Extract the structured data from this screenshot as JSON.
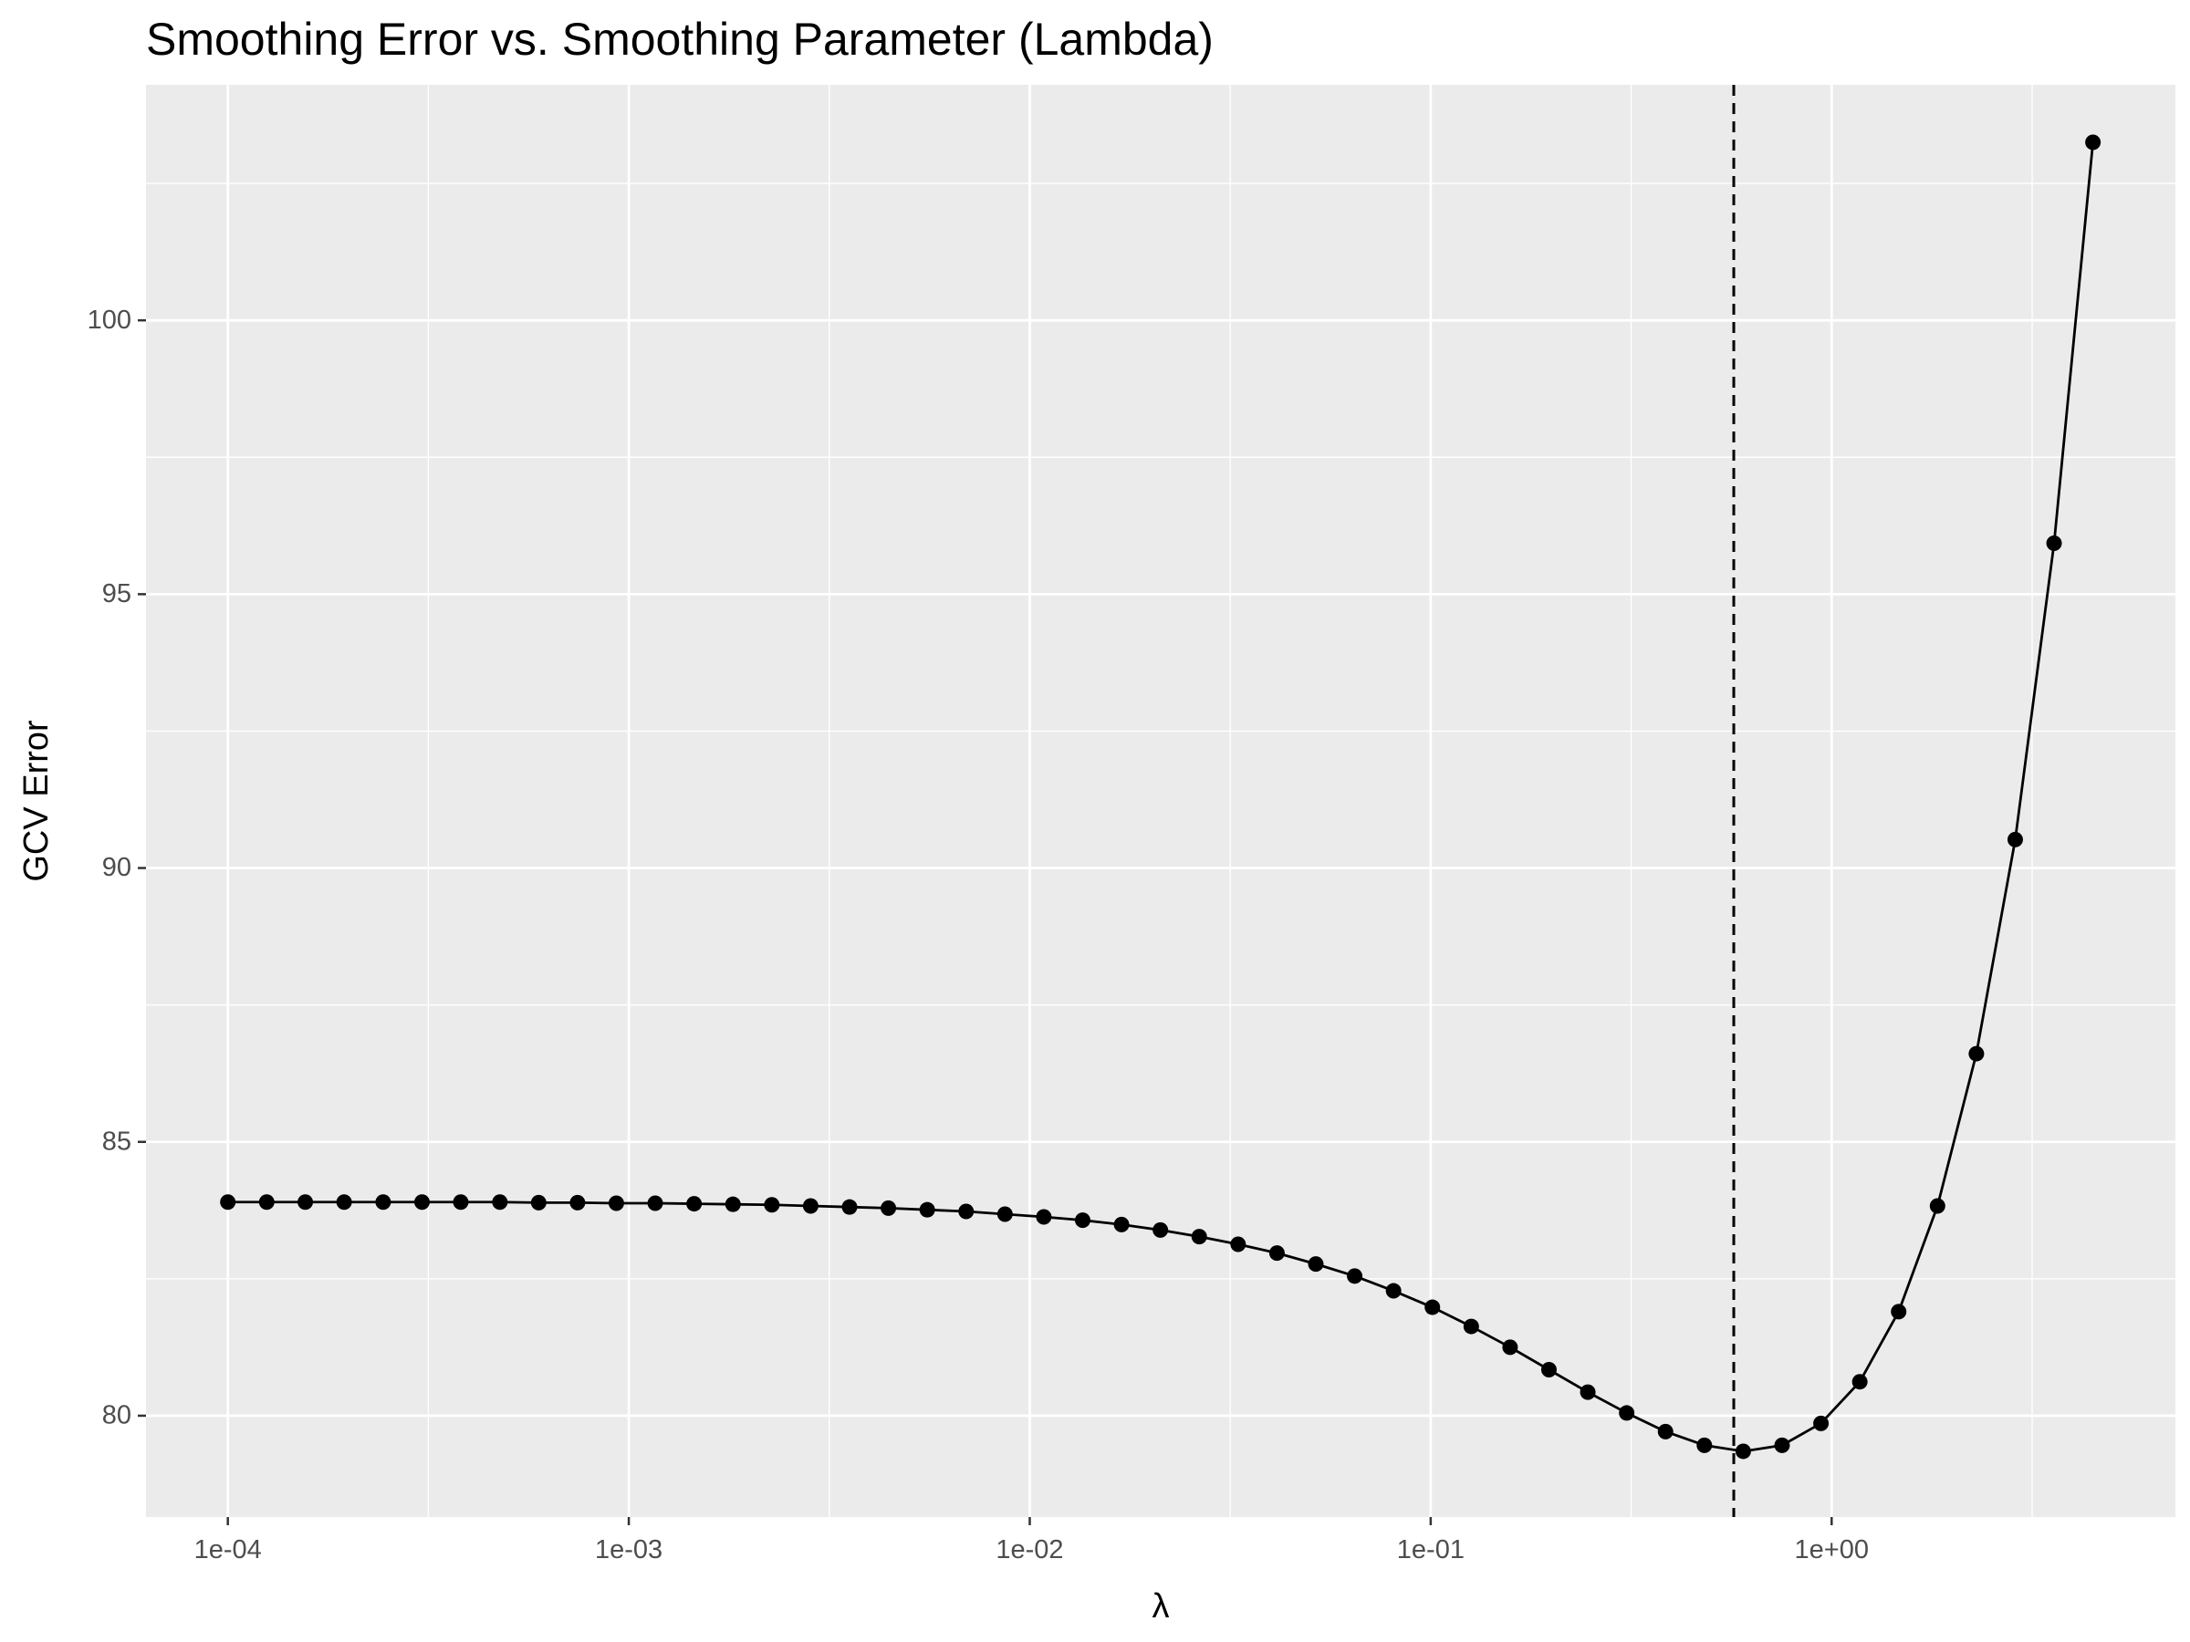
{
  "chart_data": {
    "type": "line",
    "title": "Smoothing Error vs. Smoothing Parameter (Lambda)",
    "xlabel": "λ",
    "ylabel": "GCV Error",
    "x_scale": "log10",
    "xlim": [
      6.25e-05,
      7.2
    ],
    "ylim": [
      78.15,
      104.3
    ],
    "x_ticks": [
      0.0001,
      0.001,
      0.01,
      0.1,
      1
    ],
    "x_tick_labels": [
      "1e-04",
      "1e-03",
      "1e-02",
      "1e-01",
      "1e+00"
    ],
    "y_ticks": [
      80,
      85,
      90,
      95,
      100
    ],
    "y_tick_labels": [
      "80",
      "85",
      "90",
      "95",
      "100"
    ],
    "grid": true,
    "panel_background": "#ebebeb",
    "grid_color": "#ffffff",
    "line_color": "#000000",
    "vline": {
      "x": 0.57,
      "style": "dashed",
      "color": "#000000"
    },
    "series": [
      {
        "x": [
          0.0001,
          0.000125,
          0.000156,
          0.000195,
          0.000244,
          0.000305,
          0.000381,
          0.000477,
          0.000596,
          0.000745,
          0.000931,
          0.001164,
          0.001455,
          0.001819,
          0.002274,
          0.002842,
          0.003553,
          0.004441,
          0.005551,
          0.006939,
          0.008674,
          0.010842,
          0.013553,
          0.016941,
          0.021176,
          0.02647,
          0.033088,
          0.04136,
          0.0517,
          0.064625,
          0.080781,
          0.100976,
          0.12622,
          0.157775,
          0.197219,
          0.246524,
          0.308155,
          0.385193,
          0.481492,
          0.601865,
          0.752331,
          0.940414,
          1.175517,
          1.469396,
          1.836745,
          2.295931,
          2.869914,
          3.587393
        ],
        "values": [
          83.9,
          83.9,
          83.9,
          83.9,
          83.9,
          83.9,
          83.9,
          83.9,
          83.89,
          83.89,
          83.88,
          83.88,
          83.87,
          83.86,
          83.85,
          83.83,
          83.81,
          83.79,
          83.76,
          83.73,
          83.68,
          83.63,
          83.57,
          83.49,
          83.39,
          83.27,
          83.13,
          82.97,
          82.77,
          82.55,
          82.28,
          81.98,
          81.63,
          81.25,
          80.84,
          80.43,
          80.05,
          79.71,
          79.46,
          79.35,
          79.46,
          79.86,
          80.62,
          81.9,
          83.83,
          86.61,
          90.52,
          95.93
        ]
      },
      {
        "x": [
          4.484241
        ],
        "values": [
          103.25
        ]
      }
    ]
  }
}
